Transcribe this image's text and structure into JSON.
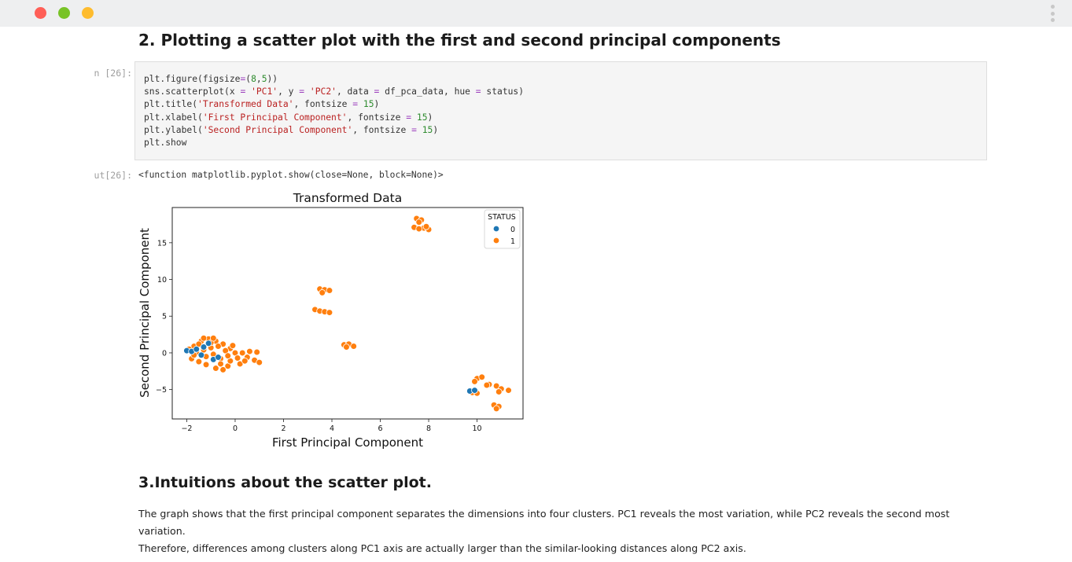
{
  "window": {
    "controls": [
      "close",
      "minimize",
      "maximize"
    ],
    "menu_icon": "kebab-menu-icon"
  },
  "headings": {
    "section2": "2. Plotting a scatter plot with the first and second principal components",
    "section3": "3.Intuitions about the scatter plot."
  },
  "cell": {
    "in_prompt": "n [26]:",
    "out_prompt": "ut[26]:",
    "output_text": "<function matplotlib.pyplot.show(close=None, block=None)>"
  },
  "paragraph": {
    "line1": "The graph shows that the first principal component separates the dimensions into four clusters. PC1 reveals the most variation, while PC2 reveals the second most variation.",
    "line2": "Therefore, differences among clusters along PC1 axis are actually larger than the similar-looking distances along PC2 axis."
  },
  "chart_data": {
    "type": "scatter",
    "title": "Transformed Data",
    "xlabel": "First Principal Component",
    "ylabel": "Second Principal Component",
    "xlim": [
      -2.6,
      11.9
    ],
    "ylim": [
      -9.0,
      19.8
    ],
    "xticks": [
      -2,
      0,
      2,
      4,
      6,
      8,
      10
    ],
    "yticks": [
      -5,
      0,
      5,
      10,
      15
    ],
    "legend": {
      "title": "STATUS",
      "position": "top-right",
      "entries": [
        "0",
        "1"
      ]
    },
    "colors": {
      "0": "#1f77b4",
      "1": "#ff7f0e"
    },
    "series": [
      {
        "name": "0",
        "points": [
          [
            -2.0,
            0.3
          ],
          [
            -1.8,
            0.2
          ],
          [
            -1.6,
            0.5
          ],
          [
            -1.3,
            0.8
          ],
          [
            -1.1,
            1.3
          ],
          [
            -0.9,
            -0.9
          ],
          [
            -1.4,
            -0.3
          ],
          [
            -0.7,
            -0.6
          ],
          [
            9.7,
            -5.2
          ],
          [
            9.9,
            -5.1
          ]
        ]
      },
      {
        "name": "1",
        "points": [
          [
            7.5,
            18.3
          ],
          [
            7.7,
            18.1
          ],
          [
            7.6,
            17.8
          ],
          [
            7.8,
            17.0
          ],
          [
            8.0,
            16.8
          ],
          [
            7.4,
            17.1
          ],
          [
            7.6,
            16.9
          ],
          [
            7.9,
            17.2
          ],
          [
            3.5,
            8.7
          ],
          [
            3.7,
            8.6
          ],
          [
            3.9,
            8.5
          ],
          [
            3.6,
            8.2
          ],
          [
            3.3,
            5.9
          ],
          [
            3.5,
            5.7
          ],
          [
            3.7,
            5.6
          ],
          [
            3.9,
            5.5
          ],
          [
            4.5,
            1.1
          ],
          [
            4.7,
            1.2
          ],
          [
            4.9,
            0.9
          ],
          [
            4.6,
            0.8
          ],
          [
            10.0,
            -3.5
          ],
          [
            10.2,
            -3.3
          ],
          [
            9.9,
            -3.9
          ],
          [
            10.5,
            -4.3
          ],
          [
            10.8,
            -4.5
          ],
          [
            10.4,
            -4.4
          ],
          [
            11.0,
            -4.9
          ],
          [
            11.3,
            -5.1
          ],
          [
            10.9,
            -5.3
          ],
          [
            10.7,
            -7.1
          ],
          [
            10.9,
            -7.3
          ],
          [
            10.8,
            -7.6
          ],
          [
            9.8,
            -5.4
          ],
          [
            10.0,
            -5.5
          ],
          [
            0.3,
            0.0
          ],
          [
            0.6,
            0.2
          ],
          [
            0.9,
            0.1
          ],
          [
            0.5,
            -0.6
          ],
          [
            0.8,
            -1.0
          ],
          [
            1.0,
            -1.3
          ],
          [
            0.2,
            -1.5
          ],
          [
            -0.3,
            -1.8
          ],
          [
            -1.7,
            0.9
          ],
          [
            -1.4,
            1.6
          ],
          [
            -1.1,
            1.9
          ],
          [
            -0.8,
            1.6
          ],
          [
            -0.5,
            1.2
          ],
          [
            -0.2,
            0.6
          ],
          [
            0.0,
            0.0
          ],
          [
            -1.8,
            -0.8
          ],
          [
            -1.5,
            -1.2
          ],
          [
            -1.2,
            -1.6
          ],
          [
            -0.8,
            -2.1
          ],
          [
            -0.5,
            -2.3
          ],
          [
            -0.2,
            -1.1
          ],
          [
            0.1,
            -0.7
          ],
          [
            -1.6,
            0.1
          ],
          [
            -1.3,
            0.4
          ],
          [
            -1.0,
            0.7
          ],
          [
            -0.7,
            0.9
          ],
          [
            -0.4,
            0.3
          ],
          [
            -1.2,
            -0.5
          ],
          [
            -0.9,
            -0.2
          ],
          [
            -0.6,
            -0.8
          ],
          [
            -0.3,
            -0.4
          ],
          [
            -1.5,
            1.2
          ],
          [
            -1.0,
            1.4
          ],
          [
            -0.6,
            -1.5
          ],
          [
            -1.7,
            -0.3
          ],
          [
            0.4,
            -1.1
          ],
          [
            -1.3,
            2.0
          ],
          [
            -0.9,
            2.0
          ],
          [
            -1.9,
            0.5
          ],
          [
            -0.1,
            1.0
          ]
        ]
      }
    ]
  }
}
